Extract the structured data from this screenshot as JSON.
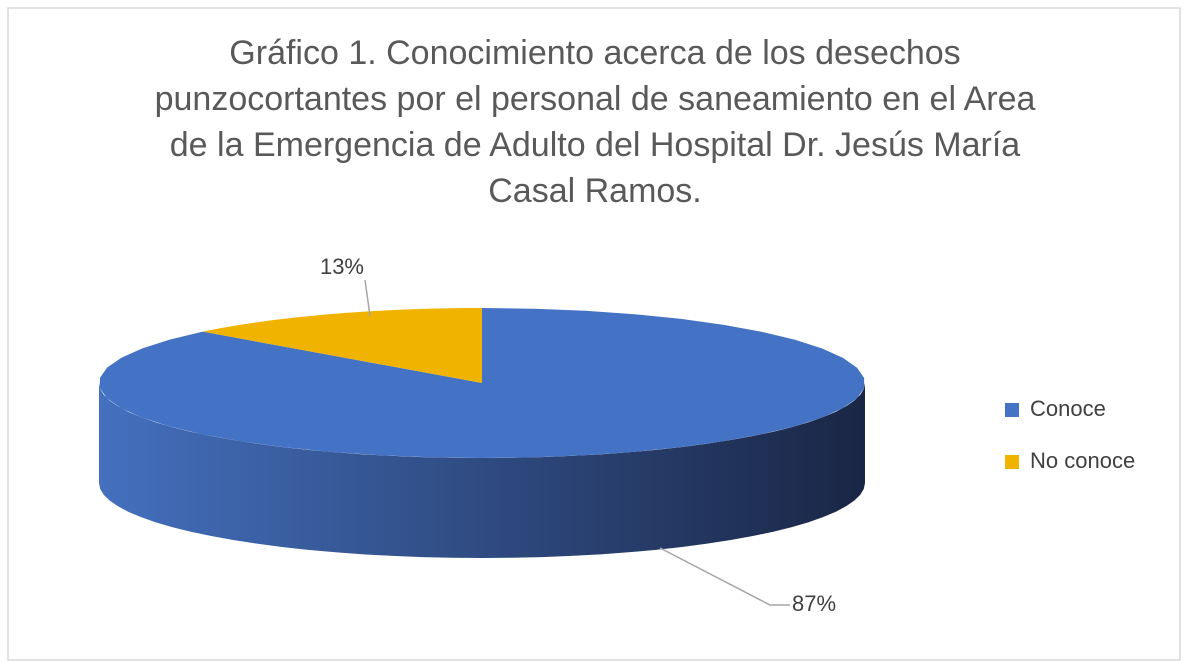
{
  "chart_data": {
    "type": "pie",
    "title": "Gráfico 1. Conocimiento acerca de los desechos punzocortantes por el personal de saneamiento en el Area de la Emergencia de Adulto del Hospital Dr. Jesús María Casal Ramos.",
    "categories": [
      "Conoce",
      "No conoce"
    ],
    "values": [
      87,
      13
    ],
    "value_labels": [
      "87%",
      "13%"
    ],
    "colors": [
      "#4472c4",
      "#f0b400"
    ],
    "legend": "right"
  }
}
